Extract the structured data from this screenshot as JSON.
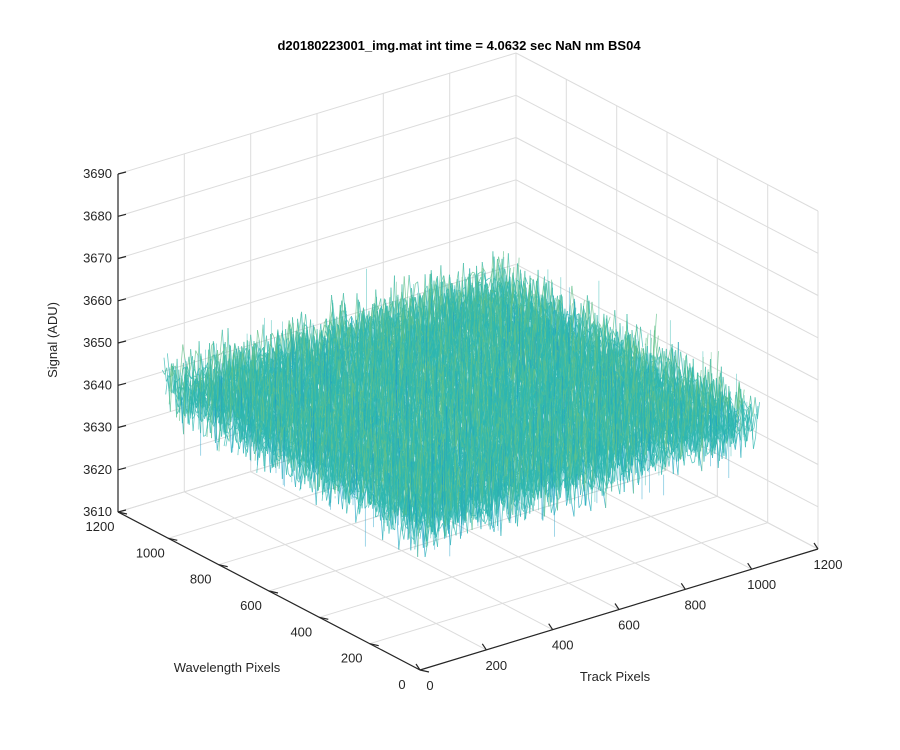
{
  "chart_data": {
    "type": "surface",
    "title": "d20180223001_img.mat int time = 4.0632 sec  NaN nm BS04",
    "xlabel": "Track Pixels",
    "ylabel": "Wavelength Pixels",
    "zlabel": "Signal (ADU)",
    "xlim": [
      0,
      1200
    ],
    "ylim": [
      0,
      1200
    ],
    "zlim": [
      3610,
      3690
    ],
    "x_ticks": [
      "0",
      "200",
      "400",
      "600",
      "800",
      "1000",
      "1200"
    ],
    "y_ticks": [
      "0",
      "200",
      "400",
      "600",
      "800",
      "1000",
      "1200"
    ],
    "z_ticks": [
      "3610",
      "3620",
      "3630",
      "3640",
      "3650",
      "3660",
      "3670",
      "3680",
      "3690"
    ],
    "surface_extent": {
      "x": [
        0,
        1024
      ],
      "y": [
        0,
        1024
      ]
    },
    "surface_mean": 3645,
    "surface_noise_range": [
      3612,
      3686
    ],
    "colormap": [
      "#0072bd",
      "#1a9ec8",
      "#2fb7b0",
      "#62c08a",
      "#b8c45a",
      "#e8d24a"
    ],
    "grid": true,
    "box": false
  }
}
